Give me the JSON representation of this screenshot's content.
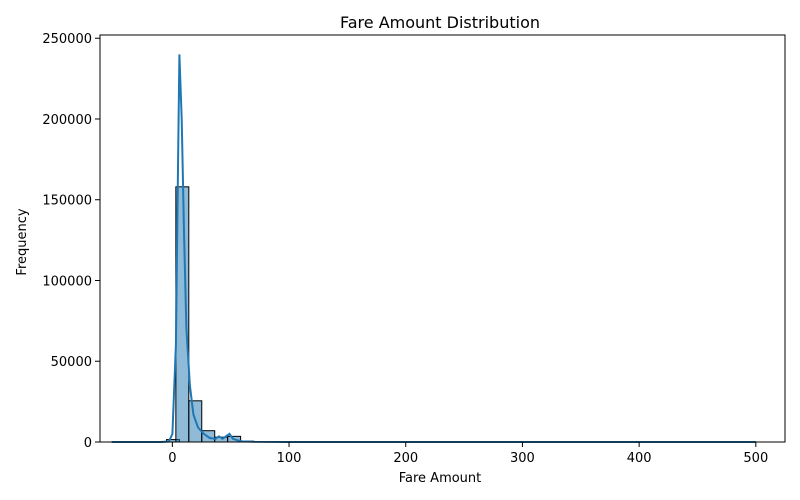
{
  "chart_data": {
    "type": "bar",
    "title": "Fare Amount Distribution",
    "xlabel": "Fare Amount",
    "ylabel": "Frequency",
    "xlim": [
      -62,
      525
    ],
    "ylim": [
      0,
      252000
    ],
    "xticks": [
      0,
      100,
      200,
      300,
      400,
      500
    ],
    "yticks": [
      0,
      50000,
      100000,
      150000,
      200000,
      250000
    ],
    "bin_width": 11.1,
    "bins": [
      {
        "x0": -5,
        "count": 1500
      },
      {
        "x0": 3,
        "count": 158000
      },
      {
        "x0": 14.1,
        "count": 25500
      },
      {
        "x0": 25.2,
        "count": 7000
      },
      {
        "x0": 36.3,
        "count": 3000
      },
      {
        "x0": 47.4,
        "count": 3500
      },
      {
        "x0": 58.5,
        "count": 500
      },
      {
        "x0": 69.6,
        "count": 200
      },
      {
        "x0": 80.7,
        "count": 100
      }
    ],
    "kde": {
      "x": [
        -52,
        -10,
        -3,
        0,
        3,
        5,
        6,
        8,
        10,
        12,
        15,
        18,
        22,
        27,
        32,
        37,
        40,
        43,
        46,
        49,
        52,
        56,
        60,
        70,
        100,
        200,
        300,
        400,
        500
      ],
      "y": [
        0,
        0,
        300,
        5000,
        60000,
        180000,
        240000,
        200000,
        130000,
        70000,
        35000,
        17000,
        9000,
        5000,
        2500,
        2000,
        3500,
        2000,
        3500,
        5000,
        2000,
        1000,
        400,
        150,
        30,
        0,
        0,
        0,
        0
      ]
    },
    "grid": false
  }
}
